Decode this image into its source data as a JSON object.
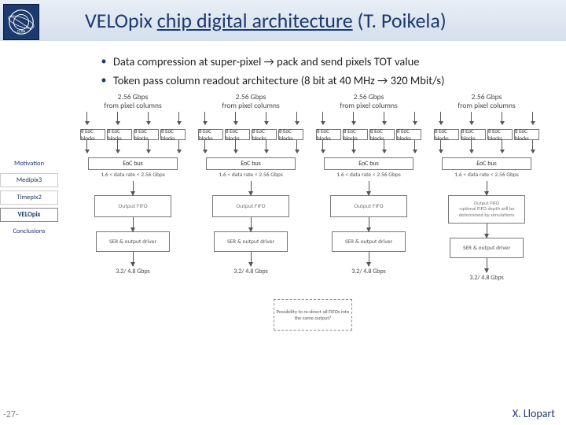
{
  "header": {
    "title_html": "VELOpix <span class='underline-span'>chip digital architecture</span> (T. Poikela)"
  },
  "bullets": [
    "Data compression at super-pixel → pack and send pixels TOT value",
    "Token pass column readout architecture (8 bit at 40 MHz → 320 Mbit/s)"
  ],
  "sidebar": {
    "items": [
      {
        "label": "Motivation",
        "style": "plain"
      },
      {
        "label": "Medipix3",
        "style": "box"
      },
      {
        "label": "Timepix2",
        "style": "box"
      },
      {
        "label": "VELOpix",
        "style": "active"
      },
      {
        "label": "Conclusions",
        "style": "plain"
      }
    ]
  },
  "diagram": {
    "column_top_label_line1": "2.56 Gbps",
    "column_top_label_line2": "from pixel columns",
    "eoc_block_label": "8 EoC blocks",
    "bus_label": "EoC bus",
    "rate_label": "1.6 < data rate < 2.56 Gbps",
    "fifo_label": "Output FIFO",
    "fifo_note": "-optimal FIFO depth will be determined by simulations",
    "ser_label": "SER & output driver",
    "bottom_rate": "3.2/ 4.8 Gbps",
    "redirect_note": "Possibility to re-direct all FIFOs into the same output?",
    "colors": {
      "accent": "#1d3a6e",
      "box_border": "#777777",
      "text": "#333333",
      "header_bg_top": "#e8eef6",
      "header_bg_bottom": "#d4dfed"
    }
  },
  "footer": {
    "page": "-27-",
    "author": "X. Llopart"
  }
}
